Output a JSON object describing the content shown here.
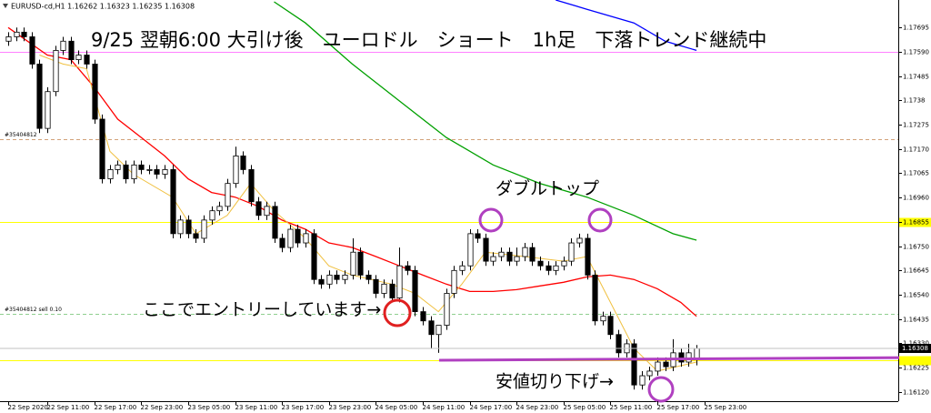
{
  "chart_data": {
    "type": "candlestick",
    "header": "EURUSD-cd,H1  1.16262 1.16323 1.16235 1.16308",
    "title": "9/25 翌朝6:00 大引け後　ユーロドル　ショート　1h足　下落トレンド継続中",
    "annotations": [
      "ダブルトップ",
      "ここでエントリーしています→",
      "安値切り下げ→"
    ],
    "xlim": [
      4.95,
      119.8
    ],
    "ylim": [
      1.1608,
      1.17814
    ],
    "xticks": [
      {
        "value": 6,
        "label": "22 Sep 2020"
      },
      {
        "value": 11,
        "label": "22 Sep 11:00"
      },
      {
        "value": 17,
        "label": "22 Sep 17:00"
      },
      {
        "value": 23,
        "label": "22 Sep 23:00"
      },
      {
        "value": 29,
        "label": "23 Sep 05:00"
      },
      {
        "value": 35,
        "label": "23 Sep 11:00"
      },
      {
        "value": 41,
        "label": "23 Sep 17:00"
      },
      {
        "value": 47,
        "label": "23 Sep 23:00"
      },
      {
        "value": 53,
        "label": "24 Sep 05:00"
      },
      {
        "value": 59,
        "label": "24 Sep 11:00"
      },
      {
        "value": 65,
        "label": "24 Sep 17:00"
      },
      {
        "value": 71,
        "label": "24 Sep 23:00"
      },
      {
        "value": 77,
        "label": "25 Sep 05:00"
      },
      {
        "value": 83,
        "label": "25 Sep 11:00"
      },
      {
        "value": 89,
        "label": "25 Sep 17:00"
      },
      {
        "value": 95,
        "label": "25 Sep 23:00"
      }
    ],
    "yticks": [
      1.17695,
      {
        "value": 1.1759,
        "label": "1.17590"
      },
      1.17485,
      1.1738,
      1.17275,
      {
        "value": 1.1717,
        "label": "1.17170"
      },
      1.17065,
      {
        "value": 1.1696,
        "label": "1.16960"
      },
      1.16855,
      {
        "value": 1.1675,
        "label": "1.16750"
      },
      1.16645,
      {
        "value": 1.1654,
        "label": "1.16540"
      },
      1.16435,
      {
        "value": 1.1633,
        "label": "1.16330"
      },
      1.16225,
      {
        "value": 1.1612,
        "label": "1.16120"
      }
    ],
    "current_price": 1.16308,
    "levels": [
      {
        "value": 1.1759,
        "color": "#ff80ff",
        "style": "solid"
      },
      {
        "value": 1.17212,
        "color": "#d2a27a",
        "style": "dashed",
        "label": "#35404812"
      },
      {
        "value": 1.16855,
        "color": "#ffff00",
        "style": "solid",
        "tag": true
      },
      {
        "value": 1.16459,
        "color": "#8fcf8f",
        "style": "dashed",
        "label": "#35404812 sell 0.10"
      },
      {
        "value": 1.16257,
        "color": "#ffff00",
        "style": "solid",
        "tag": true
      }
    ],
    "x": [
      6,
      7,
      8,
      9,
      10,
      11,
      12,
      13,
      14,
      15,
      16,
      17,
      18,
      19,
      20,
      21,
      22,
      23,
      24,
      25,
      26,
      27,
      28,
      29,
      30,
      31,
      32,
      33,
      34,
      35,
      36,
      37,
      38,
      39,
      40,
      41,
      42,
      43,
      44,
      45,
      46,
      47,
      48,
      49,
      50,
      51,
      52,
      53,
      54,
      55,
      56,
      57,
      58,
      59,
      60,
      61,
      62,
      63,
      64,
      65,
      66,
      67,
      68,
      69,
      70,
      71,
      72,
      73,
      74,
      75,
      76,
      77,
      78,
      79,
      80,
      81,
      82,
      83,
      84,
      85,
      86,
      87,
      88,
      89,
      90,
      91,
      92,
      93,
      94
    ],
    "ohlc": [
      [
        1.17636,
        1.17675,
        1.17616,
        1.17655
      ],
      [
        1.17655,
        1.17695,
        1.17636,
        1.17675
      ],
      [
        1.17675,
        1.17695,
        1.17636,
        1.17655
      ],
      [
        1.17655,
        1.17675,
        1.17517,
        1.17537
      ],
      [
        1.17537,
        1.17556,
        1.17239,
        1.17259
      ],
      [
        1.17259,
        1.17437,
        1.17239,
        1.17418
      ],
      [
        1.17418,
        1.17616,
        1.17398,
        1.17596
      ],
      [
        1.17596,
        1.17655,
        1.17576,
        1.17636
      ],
      [
        1.17636,
        1.17655,
        1.17537,
        1.17556
      ],
      [
        1.17556,
        1.17596,
        1.17537,
        1.17576
      ],
      [
        1.17576,
        1.17596,
        1.17517,
        1.17537
      ],
      [
        1.17537,
        1.17556,
        1.17279,
        1.17299
      ],
      [
        1.17299,
        1.17319,
        1.17021,
        1.17041
      ],
      [
        1.17041,
        1.17101,
        1.17021,
        1.17081
      ],
      [
        1.17081,
        1.1712,
        1.17061,
        1.17101
      ],
      [
        1.17101,
        1.1712,
        1.17021,
        1.17041
      ],
      [
        1.17041,
        1.1712,
        1.17021,
        1.17101
      ],
      [
        1.17101,
        1.1712,
        1.17061,
        1.17081
      ],
      [
        1.17081,
        1.17101,
        1.17061,
        1.17081
      ],
      [
        1.17081,
        1.17101,
        1.17041,
        1.17061
      ],
      [
        1.17061,
        1.17101,
        1.17041,
        1.17081
      ],
      [
        1.17081,
        1.17101,
        1.16784,
        1.16804
      ],
      [
        1.16804,
        1.16883,
        1.16784,
        1.16863
      ],
      [
        1.16863,
        1.16883,
        1.16784,
        1.16804
      ],
      [
        1.16804,
        1.16823,
        1.16764,
        1.16784
      ],
      [
        1.16784,
        1.16883,
        1.16764,
        1.16863
      ],
      [
        1.16863,
        1.16922,
        1.16843,
        1.16903
      ],
      [
        1.16903,
        1.16942,
        1.16883,
        1.16922
      ],
      [
        1.16922,
        1.17041,
        1.16903,
        1.17021
      ],
      [
        1.17021,
        1.1718,
        1.17002,
        1.1714
      ],
      [
        1.1714,
        1.1716,
        1.17061,
        1.17081
      ],
      [
        1.17081,
        1.17101,
        1.16922,
        1.16942
      ],
      [
        1.16942,
        1.16962,
        1.16863,
        1.16883
      ],
      [
        1.16883,
        1.16942,
        1.16863,
        1.16922
      ],
      [
        1.16922,
        1.16942,
        1.16764,
        1.16784
      ],
      [
        1.16784,
        1.16804,
        1.16724,
        1.16744
      ],
      [
        1.16744,
        1.16843,
        1.16724,
        1.16823
      ],
      [
        1.16823,
        1.16843,
        1.16744,
        1.16764
      ],
      [
        1.16764,
        1.16823,
        1.16744,
        1.16804
      ],
      [
        1.16804,
        1.16823,
        1.16586,
        1.16606
      ],
      [
        1.16606,
        1.16625,
        1.16566,
        1.16586
      ],
      [
        1.16586,
        1.16645,
        1.16566,
        1.16625
      ],
      [
        1.16625,
        1.16645,
        1.16586,
        1.16606
      ],
      [
        1.16606,
        1.16645,
        1.16586,
        1.16625
      ],
      [
        1.16625,
        1.16784,
        1.16606,
        1.16724
      ],
      [
        1.16724,
        1.16744,
        1.16606,
        1.16625
      ],
      [
        1.16625,
        1.16645,
        1.16586,
        1.16606
      ],
      [
        1.16606,
        1.16625,
        1.16526,
        1.16546
      ],
      [
        1.16546,
        1.16606,
        1.16526,
        1.16586
      ],
      [
        1.16586,
        1.16606,
        1.16507,
        1.16526
      ],
      [
        1.16526,
        1.16744,
        1.16507,
        1.16665
      ],
      [
        1.16665,
        1.16685,
        1.16625,
        1.16645
      ],
      [
        1.16645,
        1.16665,
        1.16447,
        1.16467
      ],
      [
        1.16467,
        1.16487,
        1.16408,
        1.16427
      ],
      [
        1.16427,
        1.16447,
        1.16309,
        1.16368
      ],
      [
        1.16368,
        1.16408,
        1.16289,
        1.16408
      ],
      [
        1.16408,
        1.16566,
        1.16388,
        1.16546
      ],
      [
        1.16546,
        1.16665,
        1.16526,
        1.16645
      ],
      [
        1.16645,
        1.16685,
        1.16625,
        1.16665
      ],
      [
        1.16665,
        1.16823,
        1.16645,
        1.16804
      ],
      [
        1.16804,
        1.16823,
        1.16764,
        1.16784
      ],
      [
        1.16784,
        1.16804,
        1.16665,
        1.16685
      ],
      [
        1.16685,
        1.16724,
        1.16665,
        1.16705
      ],
      [
        1.16705,
        1.16744,
        1.16685,
        1.16724
      ],
      [
        1.16724,
        1.16744,
        1.16665,
        1.16685
      ],
      [
        1.16685,
        1.16744,
        1.16665,
        1.16705
      ],
      [
        1.16705,
        1.16764,
        1.16685,
        1.16744
      ],
      [
        1.16744,
        1.16764,
        1.16665,
        1.16685
      ],
      [
        1.16685,
        1.16705,
        1.16645,
        1.16665
      ],
      [
        1.16665,
        1.16685,
        1.16625,
        1.16645
      ],
      [
        1.16645,
        1.16685,
        1.16625,
        1.16665
      ],
      [
        1.16665,
        1.16705,
        1.16645,
        1.16685
      ],
      [
        1.16685,
        1.16784,
        1.16665,
        1.16764
      ],
      [
        1.16764,
        1.16804,
        1.16744,
        1.16784
      ],
      [
        1.16784,
        1.16804,
        1.16606,
        1.16625
      ],
      [
        1.16625,
        1.16645,
        1.16408,
        1.16427
      ],
      [
        1.16427,
        1.16467,
        1.16408,
        1.16447
      ],
      [
        1.16447,
        1.16467,
        1.16348,
        1.16368
      ],
      [
        1.16368,
        1.16388,
        1.16269,
        1.16289
      ],
      [
        1.16289,
        1.16348,
        1.16269,
        1.16328
      ],
      [
        1.16328,
        1.16348,
        1.1613,
        1.1615
      ],
      [
        1.1615,
        1.1621,
        1.1613,
        1.1619
      ],
      [
        1.1619,
        1.16229,
        1.1617,
        1.1621
      ],
      [
        1.1621,
        1.16269,
        1.1619,
        1.16249
      ],
      [
        1.16249,
        1.16269,
        1.1621,
        1.16229
      ],
      [
        1.16229,
        1.16348,
        1.1621,
        1.16289
      ],
      [
        1.16289,
        1.16309,
        1.16229,
        1.16249
      ],
      [
        1.16249,
        1.16328,
        1.16229,
        1.16289
      ],
      [
        1.16262,
        1.16323,
        1.16235,
        1.16308
      ]
    ],
    "series": [
      {
        "color": "#ff0000",
        "x": [
          6,
          11,
          14,
          17,
          20,
          23,
          26,
          29,
          32,
          35,
          38,
          41,
          44,
          47,
          50,
          53,
          56,
          59,
          62,
          65,
          68,
          71,
          74,
          77,
          80,
          83,
          86,
          89,
          92,
          94
        ],
        "values": [
          1.17695,
          1.17576,
          1.17556,
          1.17437,
          1.17299,
          1.1722,
          1.1714,
          1.17041,
          1.16982,
          1.16962,
          1.16922,
          1.16863,
          1.16823,
          1.16764,
          1.16744,
          1.16705,
          1.16665,
          1.16625,
          1.16586,
          1.16554,
          1.16554,
          1.16562,
          1.16578,
          1.16594,
          1.16617,
          1.16625,
          1.16606,
          1.16566,
          1.16507,
          1.16447
        ]
      },
      {
        "color": "#00a000",
        "x": [
          40,
          44,
          50,
          56,
          62,
          68,
          74,
          80,
          86,
          91,
          94
        ],
        "values": [
          1.17806,
          1.17715,
          1.17537,
          1.17378,
          1.1722,
          1.17101,
          1.17021,
          1.16962,
          1.16883,
          1.16804,
          1.16776
        ]
      },
      {
        "color": "#0000ff",
        "x": [
          76,
          80,
          86,
          90,
          94
        ],
        "values": [
          1.17814,
          1.17774,
          1.17715,
          1.17636,
          1.17596
        ]
      },
      {
        "color": "#f0c040",
        "x": [
          10,
          13,
          16,
          19,
          22,
          27,
          30,
          34,
          37,
          40,
          44,
          47,
          50,
          55,
          58,
          61,
          64,
          67,
          72,
          77,
          80,
          83,
          86,
          89,
          94
        ],
        "values": [
          1.17576,
          1.17537,
          1.17517,
          1.1716,
          1.17061,
          1.16962,
          1.16804,
          1.16883,
          1.17021,
          1.16903,
          1.16784,
          1.16665,
          1.16625,
          1.16586,
          1.16546,
          1.16467,
          1.16586,
          1.16724,
          1.16705,
          1.16685,
          1.16705,
          1.16507,
          1.16309,
          1.1621,
          1.16249
        ]
      }
    ]
  }
}
